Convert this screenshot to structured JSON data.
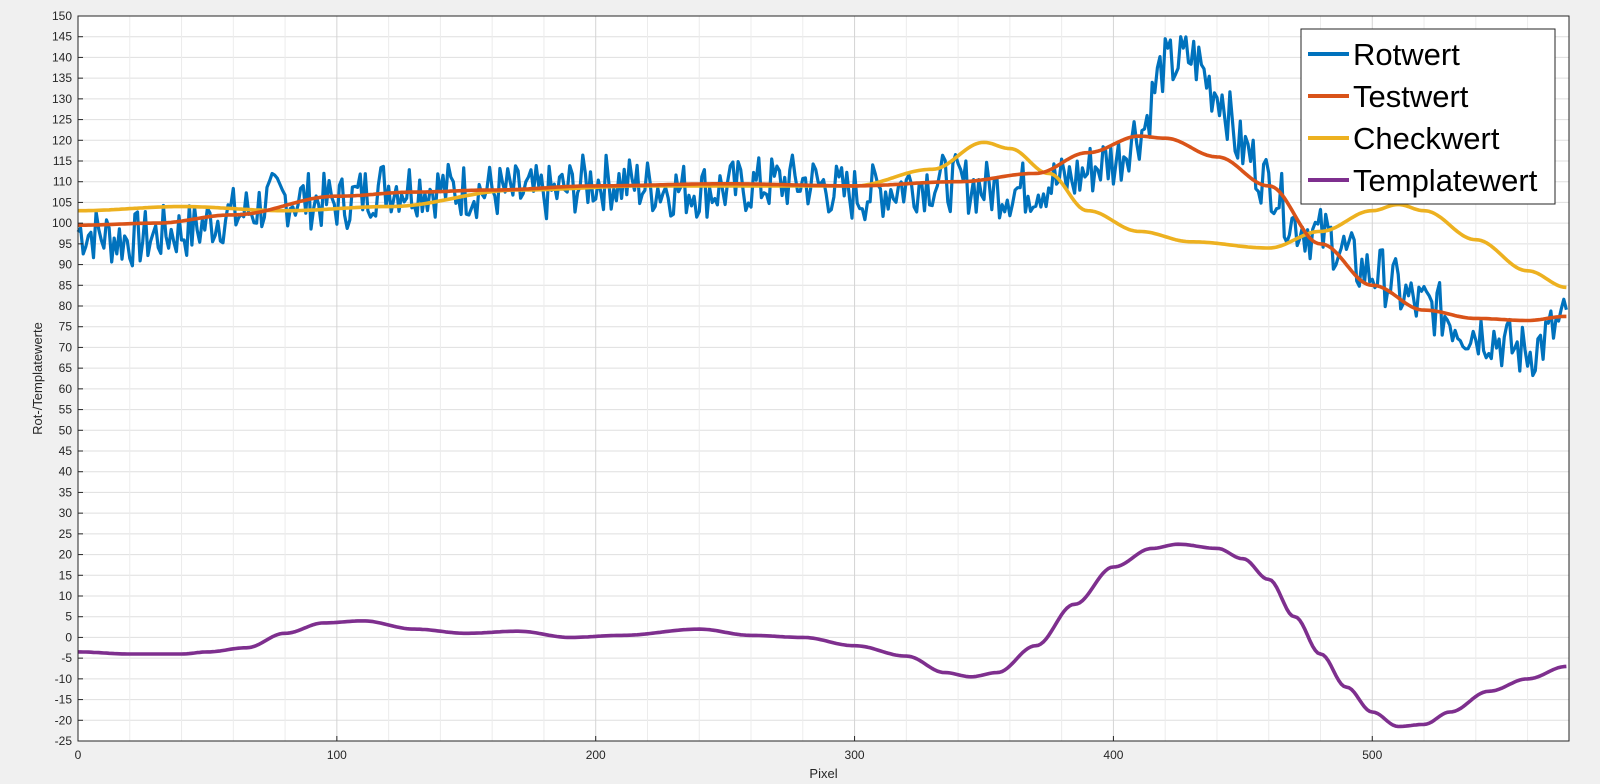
{
  "chart_data": {
    "type": "line",
    "title": "",
    "xlabel": "Pixel",
    "ylabel": "Rot-/Templatewerte",
    "xlim": [
      0,
      576
    ],
    "ylim": [
      -25,
      150
    ],
    "xticks": [
      0,
      100,
      200,
      300,
      400,
      500
    ],
    "yticks": [
      -25,
      -20,
      -15,
      -10,
      -5,
      0,
      5,
      10,
      15,
      20,
      25,
      30,
      35,
      40,
      45,
      50,
      55,
      60,
      65,
      70,
      75,
      80,
      85,
      90,
      95,
      100,
      105,
      110,
      115,
      120,
      125,
      130,
      135,
      140,
      145,
      150
    ],
    "grid": true,
    "legend_position": "top-right",
    "colors": {
      "Rotwert": "#0072bd",
      "Testwert": "#d95319",
      "Checkwert": "#edb120",
      "Templatewert": "#7e2f8e"
    },
    "series": [
      {
        "name": "Rotwert",
        "noise_amplitude": 7,
        "x": [
          0,
          20,
          40,
          60,
          80,
          100,
          120,
          150,
          180,
          200,
          240,
          280,
          300,
          330,
          360,
          380,
          400,
          410,
          420,
          430,
          440,
          450,
          460,
          470,
          480,
          500,
          520,
          540,
          560,
          575
        ],
        "y": [
          98,
          96,
          98,
          102,
          106,
          105,
          109,
          108,
          107,
          110,
          108,
          110,
          107,
          110,
          108,
          110,
          115,
          122,
          138,
          140,
          132,
          118,
          110,
          100,
          97,
          88,
          80,
          74,
          69,
          76
        ]
      },
      {
        "name": "Testwert",
        "x": [
          0,
          30,
          60,
          100,
          130,
          160,
          200,
          250,
          300,
          340,
          370,
          390,
          410,
          420,
          440,
          460,
          480,
          500,
          520,
          540,
          560,
          575
        ],
        "y": [
          99.5,
          100,
          102,
          106.5,
          107.5,
          108,
          109,
          109.5,
          109,
          110,
          112,
          117,
          121,
          120.5,
          116,
          109,
          95,
          85,
          79,
          77,
          76.5,
          77.5
        ]
      },
      {
        "name": "Checkwert",
        "x": [
          0,
          40,
          80,
          120,
          170,
          220,
          260,
          300,
          330,
          350,
          360,
          375,
          390,
          410,
          430,
          460,
          480,
          500,
          510,
          520,
          540,
          560,
          575
        ],
        "y": [
          103,
          104,
          103,
          104,
          108,
          109,
          109,
          109,
          113,
          119.5,
          118,
          112,
          103,
          98,
          95.5,
          94,
          98,
          103,
          104.5,
          103,
          96,
          88.5,
          84.5
        ]
      },
      {
        "name": "Templatewert",
        "x": [
          0,
          20,
          40,
          50,
          65,
          80,
          95,
          110,
          130,
          150,
          170,
          190,
          210,
          240,
          260,
          280,
          300,
          320,
          335,
          345,
          355,
          370,
          385,
          400,
          415,
          425,
          440,
          450,
          460,
          470,
          480,
          490,
          500,
          510,
          520,
          530,
          545,
          560,
          575
        ],
        "y": [
          -3.5,
          -4,
          -4,
          -3.5,
          -2.5,
          1,
          3.5,
          4,
          2,
          1,
          1.5,
          0,
          0.5,
          2,
          0.5,
          0,
          -2,
          -4.5,
          -8.5,
          -9.5,
          -8.5,
          -2,
          8,
          17,
          21.5,
          22.5,
          21.5,
          19,
          14,
          5,
          -4,
          -12,
          -18,
          -21.5,
          -21,
          -18,
          -13,
          -10,
          -7
        ]
      }
    ]
  }
}
